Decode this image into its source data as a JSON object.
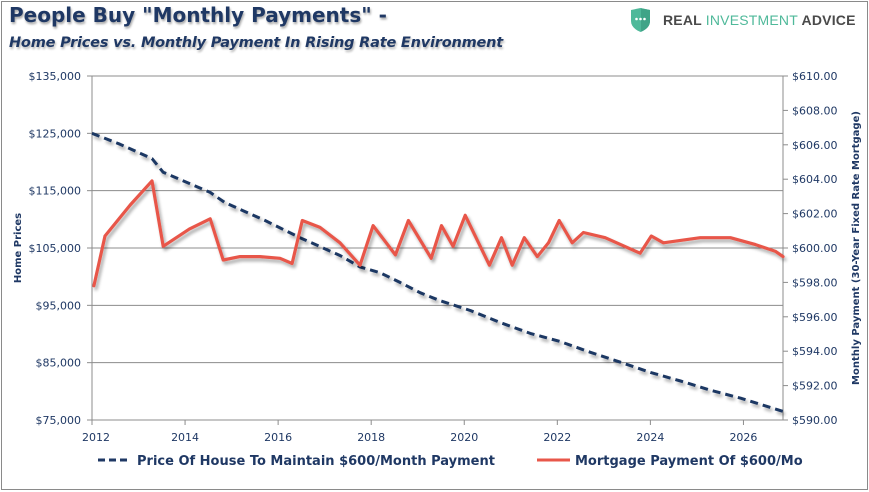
{
  "header": {
    "title": "People Buy \"Monthly Payments\" -",
    "subtitle": "Home Prices vs.  Monthly Payment In Rising Rate Environment"
  },
  "logo": {
    "icon": "shield-icon",
    "word1": "REAL ",
    "word2": "INVESTMENT",
    "word3": " ADVICE",
    "colors": {
      "shield": "#4fb99a",
      "text": "#4a4a4a",
      "accent": "#4fb99a"
    }
  },
  "chart_data": {
    "type": "line",
    "title": "People Buy \"Monthly Payments\" -",
    "subtitle": "Home Prices vs.  Monthly Payment In Rising Rate Environment",
    "xlabel": "",
    "ylabel_left": "Home Prices",
    "ylabel_right": "Monthly Payment  (30-Year Fixed Rate Mortgage)",
    "xlim": [
      2012,
      2026.85
    ],
    "ylim_left": [
      75000,
      135000
    ],
    "ylim_right": [
      590,
      610
    ],
    "grid": true,
    "legend_position": "bottom",
    "x_ticks": [
      "2012",
      "2014",
      "2016",
      "2018",
      "2020",
      "2022",
      "2024",
      "2026"
    ],
    "x_tick_values": [
      2012,
      2014,
      2016,
      2018,
      2020,
      2022,
      2024,
      2026
    ],
    "y_left_ticks": [
      "$75,000",
      "$85,000",
      "$95,000",
      "$105,000",
      "$115,000",
      "$125,000",
      "$135,000"
    ],
    "y_left_tick_values": [
      75000,
      85000,
      95000,
      105000,
      115000,
      125000,
      135000
    ],
    "y_right_ticks": [
      "$590.00",
      "$592.00",
      "$594.00",
      "$596.00",
      "$598.00",
      "$600.00",
      "$602.00",
      "$604.00",
      "$606.00",
      "$608.00",
      "$610.00"
    ],
    "y_right_tick_values": [
      590,
      592,
      594,
      596,
      598,
      600,
      602,
      604,
      606,
      608,
      610
    ],
    "series": [
      {
        "name": "Price Of House To Maintain $600/Month Payment",
        "axis": "left",
        "style": "dashed",
        "color": "#1f3864",
        "x": [
          2012.0,
          2012.6,
          2013.29,
          2013.53,
          2014.54,
          2014.86,
          2015.72,
          2016.47,
          2017.33,
          2017.76,
          2018.19,
          2018.62,
          2019.05,
          2019.48,
          2020.13,
          2020.77,
          2021.42,
          2022.06,
          2022.71,
          2023.35,
          2024.0,
          2024.65,
          2025.29,
          2025.94,
          2026.85
        ],
        "values": [
          125000,
          123100,
          120600,
          118200,
          114700,
          112900,
          109800,
          106800,
          103700,
          101700,
          100700,
          99000,
          97200,
          95800,
          94100,
          92000,
          90100,
          88700,
          86800,
          85100,
          83300,
          81800,
          80200,
          78800,
          76500
        ]
      },
      {
        "name": "Mortgage Payment Of $600/Mo",
        "axis": "right",
        "style": "solid",
        "color": "#e8574a",
        "x": [
          2012.04,
          2012.28,
          2012.82,
          2013.29,
          2013.53,
          2014.09,
          2014.54,
          2014.82,
          2015.18,
          2015.61,
          2016.04,
          2016.3,
          2016.52,
          2016.9,
          2017.33,
          2017.76,
          2018.04,
          2018.52,
          2018.8,
          2019.29,
          2019.51,
          2019.76,
          2020.02,
          2020.54,
          2020.8,
          2021.03,
          2021.29,
          2021.57,
          2021.81,
          2022.04,
          2022.32,
          2022.56,
          2023.03,
          2023.78,
          2024.02,
          2024.28,
          2025.07,
          2025.72,
          2026.26,
          2026.69,
          2026.85
        ],
        "values": [
          597.8,
          600.7,
          602.5,
          603.9,
          600.1,
          601.1,
          601.7,
          599.3,
          599.5,
          599.5,
          599.4,
          599.1,
          601.6,
          601.2,
          600.3,
          599.0,
          601.3,
          599.6,
          601.6,
          599.4,
          601.3,
          600.1,
          601.9,
          599.0,
          600.6,
          599.0,
          600.6,
          599.5,
          600.3,
          601.6,
          600.3,
          600.9,
          600.6,
          599.7,
          600.7,
          600.3,
          600.6,
          600.6,
          600.2,
          599.8,
          599.5
        ]
      }
    ]
  },
  "legend": {
    "items": [
      {
        "label": "Price Of House To Maintain $600/Month Payment",
        "color": "#1f3864",
        "style": "dashed"
      },
      {
        "label": "Mortgage Payment Of $600/Mo",
        "color": "#e8574a",
        "style": "solid"
      }
    ]
  }
}
